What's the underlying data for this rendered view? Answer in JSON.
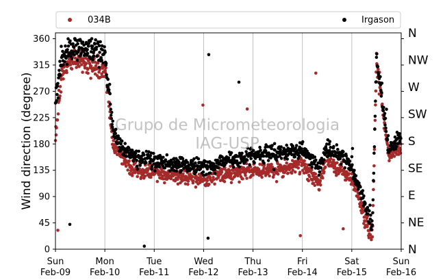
{
  "chart_data": {
    "type": "scatter",
    "ylabel": "Wind direction (degree)",
    "ylim": [
      0,
      370
    ],
    "yticks": [
      0,
      45,
      90,
      135,
      180,
      225,
      270,
      315,
      360
    ],
    "x_start": "Sun Feb-09",
    "x_end": "Sun Feb-16",
    "xticks": [
      {
        "day": "Sun",
        "date": "Feb-09"
      },
      {
        "day": "Mon",
        "date": "Feb-10"
      },
      {
        "day": "Tue",
        "date": "Feb-11"
      },
      {
        "day": "Wed",
        "date": "Feb-12"
      },
      {
        "day": "Thu",
        "date": "Feb-13"
      },
      {
        "day": "Fri",
        "date": "Feb-14"
      },
      {
        "day": "Sat",
        "date": "Feb-15"
      },
      {
        "day": "Sun",
        "date": "Feb-16"
      }
    ],
    "compass_labels": [
      "N",
      "NE",
      "E",
      "SE",
      "S",
      "SW",
      "W",
      "NW",
      "N"
    ],
    "grid": "vertical",
    "legend_position": "top",
    "watermark": "Grupo de Micrometeorologia IAG-USP",
    "series": [
      {
        "name": "034B",
        "color": "#a52a2a",
        "trend": [
          {
            "t": "Feb-09 00:00",
            "dir": 190
          },
          {
            "t": "Feb-09 03:00",
            "dir": 300
          },
          {
            "t": "Feb-09 06:00",
            "dir": 325
          },
          {
            "t": "Feb-09 12:00",
            "dir": 320
          },
          {
            "t": "Feb-09 18:00",
            "dir": 315
          },
          {
            "t": "Feb-10 00:00",
            "dir": 310
          },
          {
            "t": "Feb-10 04:00",
            "dir": 180
          },
          {
            "t": "Feb-10 08:00",
            "dir": 160
          },
          {
            "t": "Feb-10 12:00",
            "dir": 140
          },
          {
            "t": "Feb-11 00:00",
            "dir": 130
          },
          {
            "t": "Feb-11 12:00",
            "dir": 125
          },
          {
            "t": "Feb-12 00:00",
            "dir": 120
          },
          {
            "t": "Feb-12 12:00",
            "dir": 130
          },
          {
            "t": "Feb-13 00:00",
            "dir": 135
          },
          {
            "t": "Feb-13 12:00",
            "dir": 135
          },
          {
            "t": "Feb-14 00:00",
            "dir": 145
          },
          {
            "t": "Feb-14 08:00",
            "dir": 110
          },
          {
            "t": "Feb-14 12:00",
            "dir": 155
          },
          {
            "t": "Feb-14 20:00",
            "dir": 130
          },
          {
            "t": "Feb-15 00:00",
            "dir": 120
          },
          {
            "t": "Feb-15 06:00",
            "dir": 60
          },
          {
            "t": "Feb-15 10:00",
            "dir": 20
          },
          {
            "t": "Feb-15 12:00",
            "dir": 320
          },
          {
            "t": "Feb-15 18:00",
            "dir": 160
          },
          {
            "t": "Feb-16 00:00",
            "dir": 175
          }
        ]
      },
      {
        "name": "Irgason",
        "color": "#000000",
        "trend": [
          {
            "t": "Feb-09 00:00",
            "dir": 250
          },
          {
            "t": "Feb-09 03:00",
            "dir": 330
          },
          {
            "t": "Feb-09 06:00",
            "dir": 340
          },
          {
            "t": "Feb-09 12:00",
            "dir": 345
          },
          {
            "t": "Feb-09 18:00",
            "dir": 340
          },
          {
            "t": "Feb-10 00:00",
            "dir": 335
          },
          {
            "t": "Feb-10 04:00",
            "dir": 200
          },
          {
            "t": "Feb-10 08:00",
            "dir": 175
          },
          {
            "t": "Feb-10 12:00",
            "dir": 160
          },
          {
            "t": "Feb-11 00:00",
            "dir": 150
          },
          {
            "t": "Feb-11 12:00",
            "dir": 145
          },
          {
            "t": "Feb-12 00:00",
            "dir": 140
          },
          {
            "t": "Feb-12 12:00",
            "dir": 150
          },
          {
            "t": "Feb-13 00:00",
            "dir": 160
          },
          {
            "t": "Feb-13 12:00",
            "dir": 165
          },
          {
            "t": "Feb-14 00:00",
            "dir": 170
          },
          {
            "t": "Feb-14 08:00",
            "dir": 140
          },
          {
            "t": "Feb-14 12:00",
            "dir": 175
          },
          {
            "t": "Feb-14 20:00",
            "dir": 155
          },
          {
            "t": "Feb-15 00:00",
            "dir": 140
          },
          {
            "t": "Feb-15 06:00",
            "dir": 80
          },
          {
            "t": "Feb-15 10:00",
            "dir": 40
          },
          {
            "t": "Feb-15 12:00",
            "dir": 330
          },
          {
            "t": "Feb-15 18:00",
            "dir": 170
          },
          {
            "t": "Feb-16 00:00",
            "dir": 195
          }
        ]
      }
    ]
  }
}
